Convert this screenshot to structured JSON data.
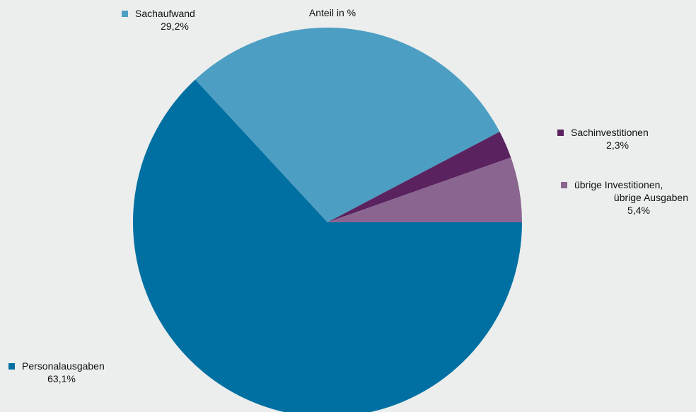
{
  "chart_data": {
    "type": "pie",
    "title": "Anteil in %",
    "slices": [
      {
        "label": "Personalausgaben",
        "value": 63.1,
        "display": "63,1%",
        "color": "#0070a2"
      },
      {
        "label": "Sachaufwand",
        "value": 29.2,
        "display": "29,2%",
        "color": "#4d9ec3"
      },
      {
        "label": "Sachinvestitionen",
        "value": 2.3,
        "display": "2,3%",
        "color": "#5a2360"
      },
      {
        "label_lines": [
          "übrige Investitionen,",
          "übrige Ausgaben"
        ],
        "label": "übrige Investitionen, übrige Ausgaben",
        "value": 5.4,
        "display": "5,4%",
        "color": "#8a6590"
      }
    ],
    "legend_position": "around slices"
  }
}
